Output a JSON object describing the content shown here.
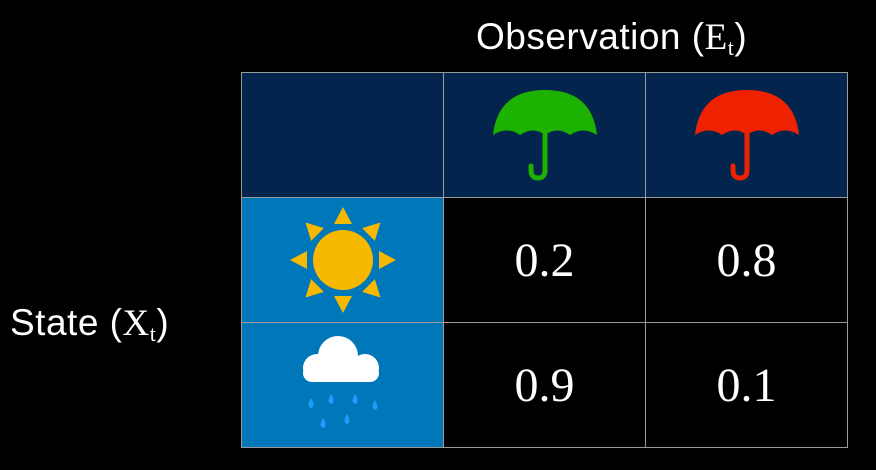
{
  "title": {
    "text": "Observation (",
    "var": "E",
    "sub": "t",
    "close": ")"
  },
  "row_label": {
    "text": "State (",
    "var": "X",
    "sub": "t",
    "close": ")"
  },
  "columns": [
    {
      "icon": "green-umbrella-icon",
      "color": "#1db100"
    },
    {
      "icon": "red-umbrella-icon",
      "color": "#ee2200"
    }
  ],
  "rows": [
    {
      "icon": "sun-icon",
      "values": [
        "0.2",
        "0.8"
      ]
    },
    {
      "icon": "rain-cloud-icon",
      "values": [
        "0.9",
        "0.1"
      ]
    }
  ],
  "colors": {
    "header": "#02244d",
    "state_cell": "#0077b8",
    "sun": "#f7b800",
    "cloud": "#ffffff",
    "drops": "#1e9bff"
  }
}
